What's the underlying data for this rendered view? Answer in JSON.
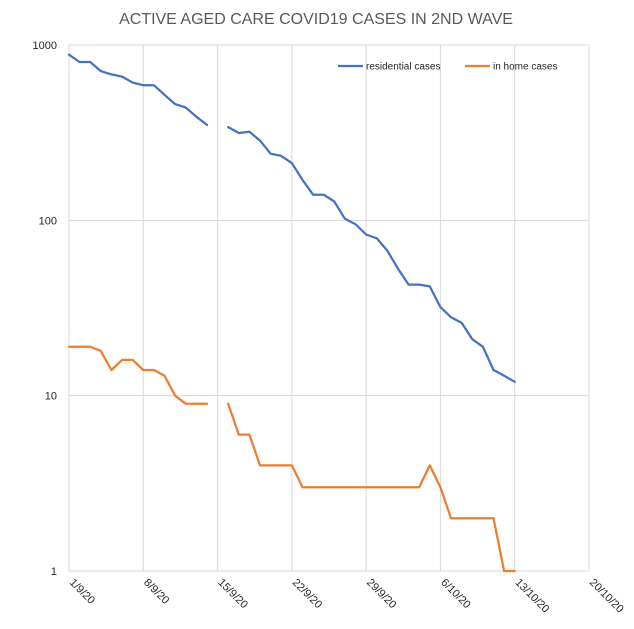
{
  "chart_data": {
    "type": "line",
    "title": "ACTIVE AGED CARE COVID19 CASES IN 2ND WAVE",
    "xlabel": "",
    "ylabel": "",
    "y_scale": "log",
    "ylim": [
      1,
      1000
    ],
    "y_ticks": [
      {
        "value": 1,
        "label": "1"
      },
      {
        "value": 10,
        "label": "10"
      },
      {
        "value": 100,
        "label": "100"
      },
      {
        "value": 1000,
        "label": "1000"
      }
    ],
    "x_ticks": [
      {
        "date": "2020-09-01",
        "label": "1/9/20"
      },
      {
        "date": "2020-09-08",
        "label": "8/9/20"
      },
      {
        "date": "2020-09-15",
        "label": "15/9/20"
      },
      {
        "date": "2020-09-22",
        "label": "22/9/20"
      },
      {
        "date": "2020-09-29",
        "label": "29/9/20"
      },
      {
        "date": "2020-10-06",
        "label": "6/10/20"
      },
      {
        "date": "2020-10-13",
        "label": "13/10/20"
      },
      {
        "date": "2020-10-20",
        "label": "20/10/20"
      }
    ],
    "xlim": [
      "2020-09-01",
      "2020-10-20"
    ],
    "grid": "vertical and horizontal",
    "legend_position": "top-right",
    "series": [
      {
        "name": "residential cases",
        "color": "#4472c4",
        "points": [
          {
            "x": "2020-09-01",
            "y": 880
          },
          {
            "x": "2020-09-02",
            "y": 800
          },
          {
            "x": "2020-09-03",
            "y": 800
          },
          {
            "x": "2020-09-04",
            "y": 710
          },
          {
            "x": "2020-09-05",
            "y": 680
          },
          {
            "x": "2020-09-06",
            "y": 660
          },
          {
            "x": "2020-09-07",
            "y": 610
          },
          {
            "x": "2020-09-08",
            "y": 590
          },
          {
            "x": "2020-09-09",
            "y": 590
          },
          {
            "x": "2020-09-10",
            "y": 520
          },
          {
            "x": "2020-09-11",
            "y": 460
          },
          {
            "x": "2020-09-12",
            "y": 440
          },
          {
            "x": "2020-09-13",
            "y": 390
          },
          {
            "x": "2020-09-14",
            "y": 350
          },
          {
            "x": "2020-09-15",
            "y": null
          },
          {
            "x": "2020-09-16",
            "y": 340
          },
          {
            "x": "2020-09-17",
            "y": 315
          },
          {
            "x": "2020-09-18",
            "y": 320
          },
          {
            "x": "2020-09-19",
            "y": 285
          },
          {
            "x": "2020-09-20",
            "y": 240
          },
          {
            "x": "2020-09-21",
            "y": 233
          },
          {
            "x": "2020-09-22",
            "y": 212
          },
          {
            "x": "2020-09-23",
            "y": 170
          },
          {
            "x": "2020-09-24",
            "y": 140
          },
          {
            "x": "2020-09-25",
            "y": 140
          },
          {
            "x": "2020-09-26",
            "y": 128
          },
          {
            "x": "2020-09-27",
            "y": 102
          },
          {
            "x": "2020-09-28",
            "y": 95
          },
          {
            "x": "2020-09-29",
            "y": 83
          },
          {
            "x": "2020-09-30",
            "y": 79
          },
          {
            "x": "2020-10-01",
            "y": 67
          },
          {
            "x": "2020-10-02",
            "y": 53
          },
          {
            "x": "2020-10-03",
            "y": 43
          },
          {
            "x": "2020-10-04",
            "y": 43
          },
          {
            "x": "2020-10-05",
            "y": 42
          },
          {
            "x": "2020-10-06",
            "y": 32
          },
          {
            "x": "2020-10-07",
            "y": 28
          },
          {
            "x": "2020-10-08",
            "y": 26
          },
          {
            "x": "2020-10-09",
            "y": 21
          },
          {
            "x": "2020-10-10",
            "y": 19
          },
          {
            "x": "2020-10-11",
            "y": 14
          },
          {
            "x": "2020-10-12",
            "y": 13
          },
          {
            "x": "2020-10-13",
            "y": 12
          }
        ]
      },
      {
        "name": "in home cases",
        "color": "#ed7d31",
        "points": [
          {
            "x": "2020-09-01",
            "y": 19
          },
          {
            "x": "2020-09-02",
            "y": 19
          },
          {
            "x": "2020-09-03",
            "y": 19
          },
          {
            "x": "2020-09-04",
            "y": 18
          },
          {
            "x": "2020-09-05",
            "y": 14
          },
          {
            "x": "2020-09-06",
            "y": 16
          },
          {
            "x": "2020-09-07",
            "y": 16
          },
          {
            "x": "2020-09-08",
            "y": 14
          },
          {
            "x": "2020-09-09",
            "y": 14
          },
          {
            "x": "2020-09-10",
            "y": 13
          },
          {
            "x": "2020-09-11",
            "y": 10
          },
          {
            "x": "2020-09-12",
            "y": 9
          },
          {
            "x": "2020-09-13",
            "y": 9
          },
          {
            "x": "2020-09-14",
            "y": 9
          },
          {
            "x": "2020-09-15",
            "y": null
          },
          {
            "x": "2020-09-16",
            "y": 9
          },
          {
            "x": "2020-09-17",
            "y": 6
          },
          {
            "x": "2020-09-18",
            "y": 6
          },
          {
            "x": "2020-09-19",
            "y": 4
          },
          {
            "x": "2020-09-20",
            "y": 4
          },
          {
            "x": "2020-09-21",
            "y": 4
          },
          {
            "x": "2020-09-22",
            "y": 4
          },
          {
            "x": "2020-09-23",
            "y": 3
          },
          {
            "x": "2020-09-24",
            "y": 3
          },
          {
            "x": "2020-09-25",
            "y": 3
          },
          {
            "x": "2020-09-26",
            "y": 3
          },
          {
            "x": "2020-09-27",
            "y": 3
          },
          {
            "x": "2020-09-28",
            "y": 3
          },
          {
            "x": "2020-09-29",
            "y": 3
          },
          {
            "x": "2020-09-30",
            "y": 3
          },
          {
            "x": "2020-10-01",
            "y": 3
          },
          {
            "x": "2020-10-02",
            "y": 3
          },
          {
            "x": "2020-10-03",
            "y": 3
          },
          {
            "x": "2020-10-04",
            "y": 3
          },
          {
            "x": "2020-10-05",
            "y": 4
          },
          {
            "x": "2020-10-06",
            "y": 3
          },
          {
            "x": "2020-10-07",
            "y": 2
          },
          {
            "x": "2020-10-08",
            "y": 2
          },
          {
            "x": "2020-10-09",
            "y": 2
          },
          {
            "x": "2020-10-10",
            "y": 2
          },
          {
            "x": "2020-10-11",
            "y": 2
          },
          {
            "x": "2020-10-12",
            "y": 1
          },
          {
            "x": "2020-10-13",
            "y": 1
          }
        ]
      }
    ]
  }
}
